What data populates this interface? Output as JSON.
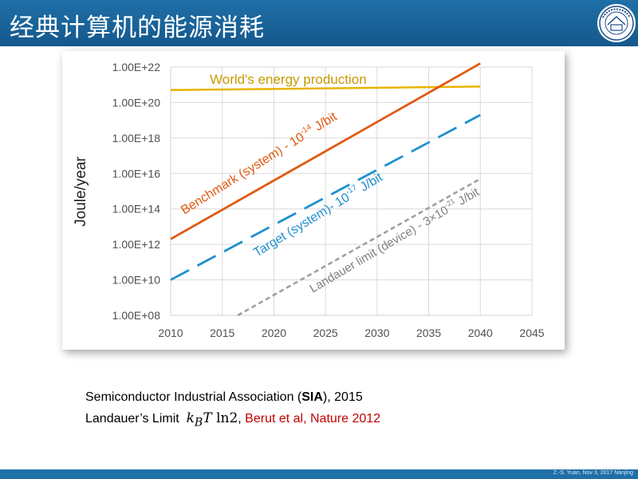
{
  "slide": {
    "title": "经典计算机的能源消耗",
    "footer": "Z.-S. Yuan, Nov 3, 2017 Nanjing"
  },
  "citations": {
    "line1_prefix": "Semiconductor Industrial Association (",
    "line1_bold": "SIA",
    "line1_suffix": "), 2015",
    "line2_prefix": "Landauer’s Limit",
    "line2_math_k": "k",
    "line2_math_sub": "B",
    "line2_math_T": "T",
    "line2_math_ln": "ln2",
    "line2_comma": ",",
    "line2_ref": "Berut et al, Nature 2012"
  },
  "colors": {
    "header": "#1f6fa8",
    "world": "#e8b400",
    "benchmark": "#e05a10",
    "target": "#1f8fd0",
    "landauer": "#a0a0a0",
    "citation_ref": "#c00000"
  },
  "chart_data": {
    "type": "line",
    "ylabel": "Joule/year",
    "y_scale": "log",
    "xlim": [
      2010,
      2045
    ],
    "ylim_exponent": [
      8,
      22
    ],
    "x_ticks": [
      "2010",
      "2015",
      "2020",
      "2025",
      "2030",
      "2035",
      "2040",
      "2045"
    ],
    "y_ticks": [
      "1.00E+08",
      "1.00E+10",
      "1.00E+12",
      "1.00E+14",
      "1.00E+16",
      "1.00E+18",
      "1.00E+20",
      "1.00E+22"
    ],
    "grid": true,
    "series": [
      {
        "name": "World's energy production",
        "style": "solid",
        "x": [
          2010,
          2040
        ],
        "y": [
          5e+20,
          8e+20
        ]
      },
      {
        "name": "Benchmark (system) - 10-14 J/bit",
        "style": "solid",
        "x": [
          2010,
          2040
        ],
        "y": [
          2000000000000.0,
          1.6e+22
        ]
      },
      {
        "name": "Target (system)- 10-17 J/bit",
        "style": "dashed",
        "x": [
          2010,
          2040
        ],
        "y": [
          10000000000.0,
          2e+19
        ]
      },
      {
        "name": "Landauer limit (device) - 3×10-21 J/bit",
        "style": "dotted",
        "x": [
          2016.5,
          2040
        ],
        "y": [
          100000000.0,
          5000000000000000.0
        ]
      }
    ],
    "annotations": [
      {
        "id": "world",
        "base": "World's energy production",
        "sup": "",
        "tail": ""
      },
      {
        "id": "bench",
        "base": "Benchmark (system) - 10",
        "sup": "-14",
        "tail": " J/bit"
      },
      {
        "id": "target",
        "base": "Target (system)- 10",
        "sup": "-17",
        "tail": " J/bit"
      },
      {
        "id": "landauer",
        "base": "Landauer limit (device) - 3×10",
        "sup": "-21",
        "tail": " J/bit"
      }
    ]
  }
}
